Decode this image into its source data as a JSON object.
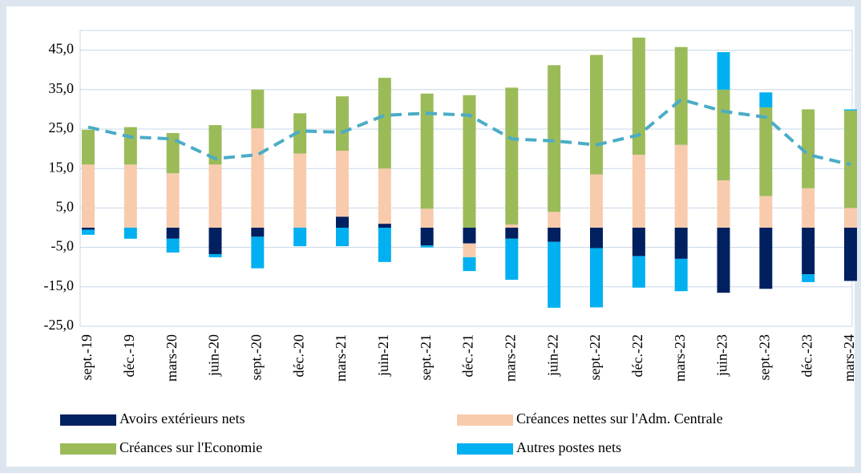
{
  "chart_data": {
    "type": "bar",
    "categories": [
      "sept.-19",
      "déc.-19",
      "mars-20",
      "juin-20",
      "sept.-20",
      "déc.-20",
      "mars-21",
      "juin-21",
      "sept.-21",
      "déc.-21",
      "mars-22",
      "juin-22",
      "sept.-22",
      "déc.-22",
      "mars-23",
      "juin-23",
      "sept.-23",
      "déc.-23",
      "mars-24"
    ],
    "series": [
      {
        "name": "Avoirs extérieurs nets",
        "color": "#002060",
        "values": [
          -0.5,
          0,
          -2.8,
          -6.7,
          -2.3,
          0,
          2.8,
          1.0,
          -4.5,
          -4.0,
          -2.8,
          -3.6,
          -5.2,
          -7.2,
          -7.9,
          -16.5,
          -15.5,
          -11.8,
          -13.5
        ]
      },
      {
        "name": "Créances nettes sur l'Adm. Centrale",
        "color": "#f8cbad",
        "values": [
          16,
          16,
          13.8,
          16,
          25.2,
          18.8,
          16.7,
          14,
          4.8,
          -3.5,
          0.8,
          4,
          13.5,
          18.5,
          21,
          12,
          8,
          10,
          5
        ]
      },
      {
        "name": "Créances  sur l'Economie",
        "color": "#9bbb59",
        "values": [
          8.8,
          9.5,
          10.2,
          10,
          9.8,
          10.2,
          13.8,
          23,
          29.2,
          33.6,
          34.7,
          37.2,
          30.3,
          29.7,
          24.8,
          23,
          22.5,
          20,
          24.7
        ]
      },
      {
        "name": "Autres postes nets",
        "color": "#00b0f0",
        "values": [
          -1.3,
          -2.8,
          -3.5,
          -0.8,
          -8,
          -4.7,
          -4.7,
          -8.7,
          -0.5,
          -3.5,
          -10.4,
          -16.7,
          -15,
          -8,
          -8.2,
          9.5,
          3.8,
          -2,
          0.3
        ]
      }
    ],
    "line": {
      "type": "line",
      "color": "#4bacc6",
      "dashed": true,
      "values": [
        25.5,
        23,
        22.5,
        17.5,
        18.5,
        24.5,
        24.2,
        28.5,
        29,
        28.5,
        22.5,
        22,
        21,
        23.5,
        32.5,
        29.5,
        28,
        18.5,
        16
      ]
    },
    "ylim": [
      -25,
      50
    ],
    "yticks": [
      {
        "value": -25,
        "label": "-25,0"
      },
      {
        "value": -15,
        "label": "-15,0"
      },
      {
        "value": -5,
        "label": "-5,0"
      },
      {
        "value": 5,
        "label": "5,0"
      },
      {
        "value": 15,
        "label": "15,0"
      },
      {
        "value": 25,
        "label": "25,0"
      },
      {
        "value": 35,
        "label": "35,0"
      },
      {
        "value": 45,
        "label": "45,0"
      }
    ],
    "grid": true
  }
}
